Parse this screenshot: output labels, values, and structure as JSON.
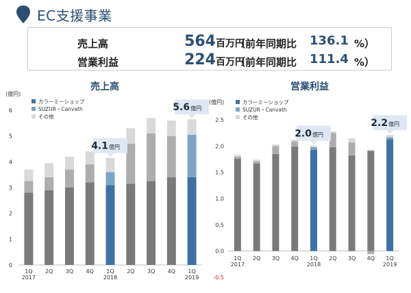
{
  "page": {
    "title": "EC支援事業"
  },
  "summary": {
    "rows": [
      {
        "label": "売上高",
        "value": "564",
        "unit": "百万円",
        "prefix": "（前年同期比",
        "pct": "136.1",
        "suffix": "%）"
      },
      {
        "label": "営業利益",
        "value": "224",
        "unit": "百万円",
        "prefix": "（前年同期比",
        "pct": "111.4",
        "suffix": "%）"
      }
    ]
  },
  "colors": {
    "title": "#2b4f73",
    "s1": "#7a7a7a",
    "s2": "#adadad",
    "s3": "#d9d9d9",
    "hl1": "#3d73a4",
    "hl2": "#7aa6c6",
    "callout": "#dfe8f2"
  },
  "chart_data": [
    {
      "type": "bar",
      "stacked": true,
      "title": "売上高",
      "ylabel": "(億円)",
      "ylim": [
        0,
        6
      ],
      "yticks": [
        0,
        1,
        2,
        3,
        4,
        5,
        6
      ],
      "x_quarters": [
        "1Q",
        "2Q",
        "3Q",
        "4Q",
        "1Q",
        "2Q",
        "3Q",
        "4Q",
        "1Q"
      ],
      "x_years": [
        "2017",
        "",
        "",
        "",
        "2018",
        "",
        "",
        "",
        "2019"
      ],
      "highlight_indices": [
        4,
        8
      ],
      "legend": [
        "カラーミーショップ",
        "SUZUR・Canvath",
        "その他"
      ],
      "series": [
        {
          "name": "カラーミーショップ",
          "values": [
            2.8,
            2.9,
            3.0,
            3.2,
            3.1,
            3.15,
            3.25,
            3.4,
            3.4
          ]
        },
        {
          "name": "SUZUR・Canvath",
          "values": [
            0.45,
            0.5,
            0.7,
            0.7,
            0.5,
            1.55,
            1.85,
            1.6,
            1.65
          ]
        },
        {
          "name": "その他",
          "values": [
            0.45,
            0.55,
            0.5,
            0.5,
            0.55,
            0.6,
            0.6,
            0.6,
            0.6
          ]
        }
      ],
      "callouts": [
        {
          "index": 4,
          "value": "4.1",
          "unit": "億円"
        },
        {
          "index": 8,
          "value": "5.6",
          "unit": "億円"
        }
      ]
    },
    {
      "type": "bar",
      "stacked": true,
      "title": "営業利益",
      "ylabel": "(億円)",
      "ylim": [
        -0.5,
        2.5
      ],
      "yticks": [
        2.5,
        2.0,
        1.5,
        1.0,
        0.5,
        0.0,
        -0.5
      ],
      "ytick_labels": [
        "2.5",
        "2.0",
        "1.5",
        "1.0",
        "0.5",
        "0.0",
        "-0.5"
      ],
      "x_quarters": [
        "1Q",
        "2Q",
        "3Q",
        "4Q",
        "1Q",
        "2Q",
        "3Q",
        "4Q",
        "1Q"
      ],
      "x_years": [
        "2017",
        "",
        "",
        "",
        "2018",
        "",
        "",
        "",
        "2019"
      ],
      "highlight_indices": [
        4,
        8
      ],
      "legend": [
        "カラーミーショップ",
        "SUZUR・Canvath",
        "その他"
      ],
      "series": [
        {
          "name": "カラーミーショップ",
          "values": [
            1.76,
            1.67,
            1.85,
            1.99,
            1.93,
            1.98,
            1.82,
            1.91,
            2.13
          ]
        },
        {
          "name": "SUZUR・Canvath",
          "values": [
            0.04,
            0.04,
            0.15,
            0.1,
            0.05,
            0.27,
            0.25,
            -0.06,
            0.04
          ]
        },
        {
          "name": "その他",
          "values": [
            0.03,
            0.03,
            0.03,
            0.03,
            0.03,
            0.03,
            0.08,
            0.02,
            0.04
          ]
        }
      ],
      "callouts": [
        {
          "index": 4,
          "value": "2.0",
          "unit": "億円"
        },
        {
          "index": 8,
          "value": "2.2",
          "unit": "億円"
        }
      ]
    }
  ]
}
